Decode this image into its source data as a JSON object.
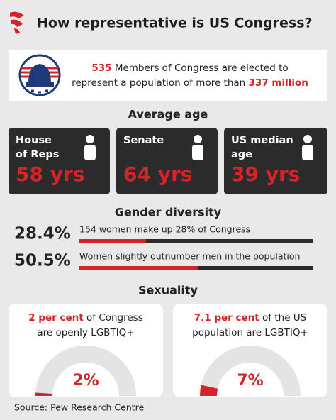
{
  "header": {
    "title": "How representative is US Congress?"
  },
  "intro": {
    "lines": [
      [
        {
          "text": "535",
          "color": "#d6232a"
        },
        " Members of Congress are elected to"
      ],
      [
        "represent a population of more than ",
        {
          "text": "337 million",
          "color": "#d6232a"
        }
      ]
    ]
  },
  "average_age": {
    "heading": "Average age",
    "boxes": [
      {
        "label": [
          "House",
          "of Reps"
        ],
        "value": "58 yrs"
      },
      {
        "label": [
          "Senate"
        ],
        "value": "64 yrs"
      },
      {
        "label": [
          "US median",
          "age"
        ],
        "value": "39 yrs"
      }
    ]
  },
  "gender": {
    "heading": "Gender diversity",
    "range": [
      0,
      100
    ],
    "color": "#d6232a",
    "items": [
      {
        "value": 28.4,
        "label": "28.4%",
        "text": "154 women make up 28% of Congress"
      },
      {
        "value": 50.5,
        "label": "50.5%",
        "text": "Women slightly outnumber men in the population"
      }
    ]
  },
  "sexuality": {
    "heading": "Sexuality",
    "range": [
      0,
      100
    ],
    "color": "#d6232a",
    "cards": [
      {
        "lines": [
          [
            {
              "text": "2 per cent",
              "color": "#d6232a"
            },
            " of Congress"
          ],
          [
            "are openly LGBTIQ+"
          ]
        ],
        "value": 2,
        "label": "2%"
      },
      {
        "lines": [
          [
            {
              "text": "7.1 per cent",
              "color": "#d6232a"
            },
            " of the US"
          ],
          [
            "population are LGBTIQ+"
          ]
        ],
        "value": 7,
        "label": "7%"
      }
    ]
  },
  "footer": {
    "source": "Source: Pew Research Centre"
  }
}
